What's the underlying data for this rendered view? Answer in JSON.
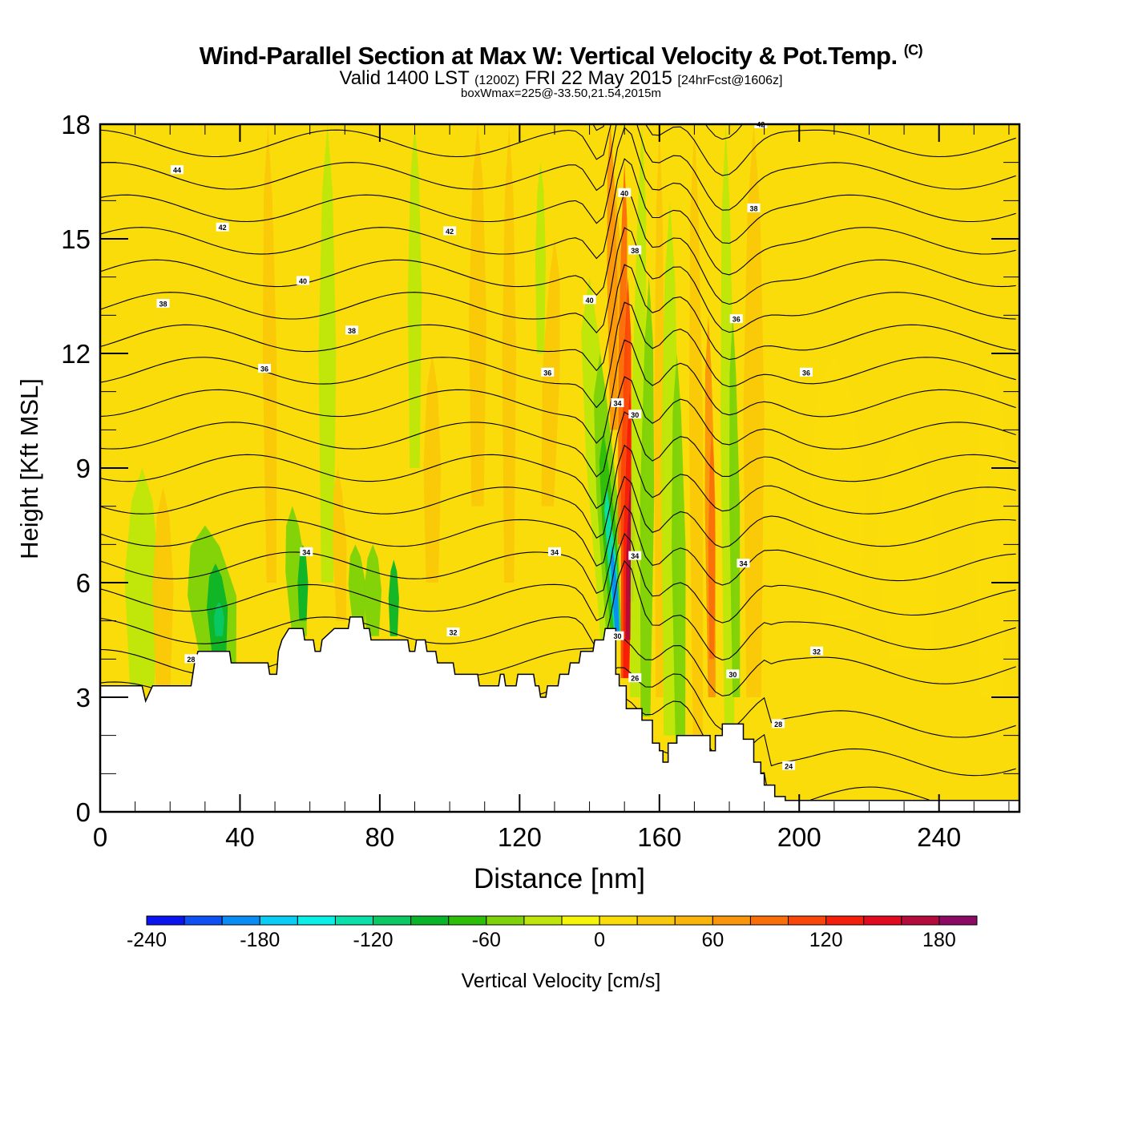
{
  "header": {
    "title": "Wind-Parallel Section at Max W: Vertical Velocity & Pot.Temp.",
    "copyright": "(C)",
    "valid_prefix": "Valid 1400 LST",
    "valid_utc": "(1200Z)",
    "valid_date": "FRI 22 May 2015",
    "forecast_info": "[24hrFcst@1606z]",
    "box_info": "boxWmax=225@-33.50,21.54,2015m"
  },
  "chart_data": {
    "type": "heatmap",
    "title": "Wind-Parallel Section at Max W: Vertical Velocity & Pot.Temp.",
    "xlabel": "Distance [nm]",
    "ylabel": "Height [Kft MSL]",
    "xlim": [
      0,
      263
    ],
    "ylim": [
      0,
      18
    ],
    "x_ticks": [
      "0",
      "40",
      "80",
      "120",
      "160",
      "200",
      "240"
    ],
    "x_tick_values": [
      0,
      40,
      80,
      120,
      160,
      200,
      240
    ],
    "y_ticks": [
      "0",
      "3",
      "6",
      "9",
      "12",
      "15",
      "18"
    ],
    "y_tick_values": [
      0,
      3,
      6,
      9,
      12,
      15,
      18
    ],
    "colorbar": {
      "label": "Vertical Velocity [cm/s]",
      "min": -240,
      "max": 200,
      "step": 20,
      "tick_labels": [
        "-240",
        "-180",
        "-120",
        "-60",
        "0",
        "60",
        "120",
        "180"
      ],
      "tick_values": [
        -240,
        -180,
        -120,
        -60,
        0,
        60,
        120,
        180
      ],
      "colors": [
        "#0a14f0",
        "#0f50f5",
        "#0a8cf5",
        "#0acdf5",
        "#0af0e6",
        "#0ae1aa",
        "#0ac864",
        "#0ab428",
        "#2dbe0a",
        "#7dd20a",
        "#bee60a",
        "#f5f50a",
        "#fadc0a",
        "#fac80a",
        "#fab40a",
        "#fa960a",
        "#fa6e0a",
        "#fa460a",
        "#f51e0a",
        "#e10a1e",
        "#b40a3c",
        "#8c0a64"
      ]
    },
    "contour_labels": [
      "44",
      "42",
      "42",
      "40",
      "38",
      "38",
      "36",
      "36",
      "36",
      "34",
      "34",
      "34",
      "34",
      "32",
      "32",
      "30",
      "30",
      "28",
      "28",
      "26",
      "24",
      "40",
      "40",
      "38",
      "38",
      "42",
      "36",
      "34",
      "30"
    ],
    "terrain_top_kft": [
      {
        "x": 0,
        "h": 3.3
      },
      {
        "x": 12,
        "h": 3.3
      },
      {
        "x": 13,
        "h": 2.9
      },
      {
        "x": 15,
        "h": 3.3
      },
      {
        "x": 26,
        "h": 3.3
      },
      {
        "x": 27,
        "h": 3.9
      },
      {
        "x": 28,
        "h": 4.2
      },
      {
        "x": 37,
        "h": 4.2
      },
      {
        "x": 37.5,
        "h": 3.9
      },
      {
        "x": 48,
        "h": 3.9
      },
      {
        "x": 48.5,
        "h": 3.6
      },
      {
        "x": 50.5,
        "h": 3.6
      },
      {
        "x": 51,
        "h": 4.2
      },
      {
        "x": 52,
        "h": 4.5
      },
      {
        "x": 54,
        "h": 4.8
      },
      {
        "x": 58,
        "h": 4.8
      },
      {
        "x": 58.5,
        "h": 4.5
      },
      {
        "x": 61,
        "h": 4.5
      },
      {
        "x": 61.5,
        "h": 4.2
      },
      {
        "x": 63,
        "h": 4.2
      },
      {
        "x": 63.5,
        "h": 4.5
      },
      {
        "x": 67,
        "h": 4.8
      },
      {
        "x": 71,
        "h": 4.8
      },
      {
        "x": 71.5,
        "h": 5.1
      },
      {
        "x": 75,
        "h": 5.1
      },
      {
        "x": 75.5,
        "h": 4.8
      },
      {
        "x": 77,
        "h": 4.8
      },
      {
        "x": 77.5,
        "h": 4.5
      },
      {
        "x": 88,
        "h": 4.5
      },
      {
        "x": 88.5,
        "h": 4.2
      },
      {
        "x": 90,
        "h": 4.2
      },
      {
        "x": 90.5,
        "h": 4.5
      },
      {
        "x": 93,
        "h": 4.5
      },
      {
        "x": 93.5,
        "h": 4.2
      },
      {
        "x": 96,
        "h": 4.2
      },
      {
        "x": 96.5,
        "h": 3.9
      },
      {
        "x": 101,
        "h": 3.9
      },
      {
        "x": 101.5,
        "h": 3.6
      },
      {
        "x": 108,
        "h": 3.6
      },
      {
        "x": 108.5,
        "h": 3.3
      },
      {
        "x": 114,
        "h": 3.3
      },
      {
        "x": 114.5,
        "h": 3.6
      },
      {
        "x": 115.5,
        "h": 3.6
      },
      {
        "x": 116,
        "h": 3.3
      },
      {
        "x": 119,
        "h": 3.3
      },
      {
        "x": 119.5,
        "h": 3.6
      },
      {
        "x": 124,
        "h": 3.6
      },
      {
        "x": 124.5,
        "h": 3.3
      },
      {
        "x": 125.5,
        "h": 3.3
      },
      {
        "x": 126,
        "h": 3.0
      },
      {
        "x": 127.5,
        "h": 3.0
      },
      {
        "x": 128,
        "h": 3.3
      },
      {
        "x": 131,
        "h": 3.3
      },
      {
        "x": 131.5,
        "h": 3.6
      },
      {
        "x": 134,
        "h": 3.6
      },
      {
        "x": 134.5,
        "h": 3.9
      },
      {
        "x": 137,
        "h": 3.9
      },
      {
        "x": 137.5,
        "h": 4.2
      },
      {
        "x": 141,
        "h": 4.2
      },
      {
        "x": 141.5,
        "h": 4.5
      },
      {
        "x": 144,
        "h": 4.5
      },
      {
        "x": 144.5,
        "h": 4.8
      },
      {
        "x": 147.5,
        "h": 4.8
      },
      {
        "x": 147.5,
        "h": 3.6
      },
      {
        "x": 148.5,
        "h": 3.6
      },
      {
        "x": 148.5,
        "h": 3.3
      },
      {
        "x": 150.5,
        "h": 3.3
      },
      {
        "x": 150.5,
        "h": 2.7
      },
      {
        "x": 155,
        "h": 2.7
      },
      {
        "x": 155,
        "h": 2.4
      },
      {
        "x": 158,
        "h": 2.4
      },
      {
        "x": 158,
        "h": 1.8
      },
      {
        "x": 160,
        "h": 1.8
      },
      {
        "x": 160,
        "h": 1.6
      },
      {
        "x": 161,
        "h": 1.6
      },
      {
        "x": 161,
        "h": 1.3
      },
      {
        "x": 162.5,
        "h": 1.3
      },
      {
        "x": 162.5,
        "h": 1.8
      },
      {
        "x": 165,
        "h": 1.8
      },
      {
        "x": 165,
        "h": 2.0
      },
      {
        "x": 174.5,
        "h": 2.0
      },
      {
        "x": 174.5,
        "h": 1.6
      },
      {
        "x": 176,
        "h": 1.6
      },
      {
        "x": 176,
        "h": 2.0
      },
      {
        "x": 178,
        "h": 2.0
      },
      {
        "x": 178,
        "h": 2.3
      },
      {
        "x": 184,
        "h": 2.3
      },
      {
        "x": 184,
        "h": 1.9
      },
      {
        "x": 187,
        "h": 1.9
      },
      {
        "x": 187,
        "h": 1.3
      },
      {
        "x": 189,
        "h": 1.3
      },
      {
        "x": 189,
        "h": 1.0
      },
      {
        "x": 190,
        "h": 1.0
      },
      {
        "x": 190,
        "h": 0.7
      },
      {
        "x": 193,
        "h": 0.7
      },
      {
        "x": 193,
        "h": 0.4
      },
      {
        "x": 196,
        "h": 0.4
      },
      {
        "x": 196,
        "h": 0.3
      },
      {
        "x": 263,
        "h": 0.3
      }
    ]
  },
  "colorbar_label": "Vertical Velocity [cm/s]"
}
